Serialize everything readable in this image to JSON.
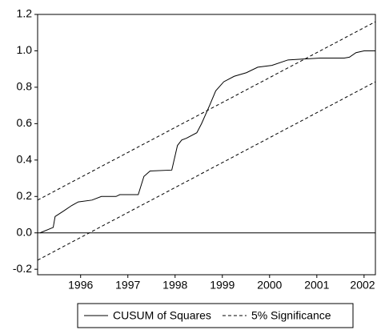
{
  "chart_data": {
    "type": "line",
    "xlim": [
      1995.59,
      2002.74
    ],
    "ylim": [
      -0.23,
      1.2
    ],
    "yticks": [
      1.2,
      {
        "value": 1,
        "label": "1.0"
      },
      0.8,
      0.6,
      0.4,
      0.2,
      {
        "value": 0,
        "label": "0.0"
      },
      -0.2
    ],
    "xticks": [
      {
        "value": 1996.5,
        "label": "1996"
      },
      {
        "value": 1997.5,
        "label": "1997"
      },
      {
        "value": 1998.5,
        "label": "1998"
      },
      {
        "value": 1999.5,
        "label": "1999"
      },
      {
        "value": 2000.5,
        "label": "2000"
      },
      {
        "value": 2001.5,
        "label": "2001"
      },
      {
        "value": 2002.5,
        "label": "2002"
      }
    ],
    "zero_line": true,
    "legend": "bottom",
    "series": [
      {
        "name": "CUSUM of Squares",
        "color": "#000000",
        "dash": false,
        "x": [
          1995.64,
          1995.92,
          1995.96,
          1996.14,
          1996.31,
          1996.45,
          1996.74,
          1996.94,
          1997.25,
          1997.33,
          1997.72,
          1997.84,
          1997.97,
          1998.43,
          1998.55,
          1998.64,
          1998.74,
          1998.96,
          1999.06,
          1999.23,
          1999.36,
          1999.53,
          1999.75,
          2000.01,
          2000.25,
          2000.55,
          2000.89,
          2001.23,
          2001.57,
          2002.08,
          2002.19,
          2002.33,
          2002.5,
          2002.74
        ],
        "values": [
          0.0,
          0.03,
          0.09,
          0.12,
          0.15,
          0.17,
          0.18,
          0.2,
          0.2,
          0.21,
          0.21,
          0.31,
          0.34,
          0.345,
          0.48,
          0.51,
          0.52,
          0.55,
          0.6,
          0.7,
          0.78,
          0.83,
          0.86,
          0.88,
          0.91,
          0.92,
          0.95,
          0.955,
          0.96,
          0.96,
          0.965,
          0.99,
          1.0,
          1.0
        ]
      },
      {
        "name": "5% Significance",
        "color": "#000000",
        "dash": true,
        "x": [
          1995.59,
          2002.74
        ],
        "upper": [
          0.18,
          1.16
        ],
        "lower": [
          -0.15,
          0.83
        ]
      }
    ]
  }
}
